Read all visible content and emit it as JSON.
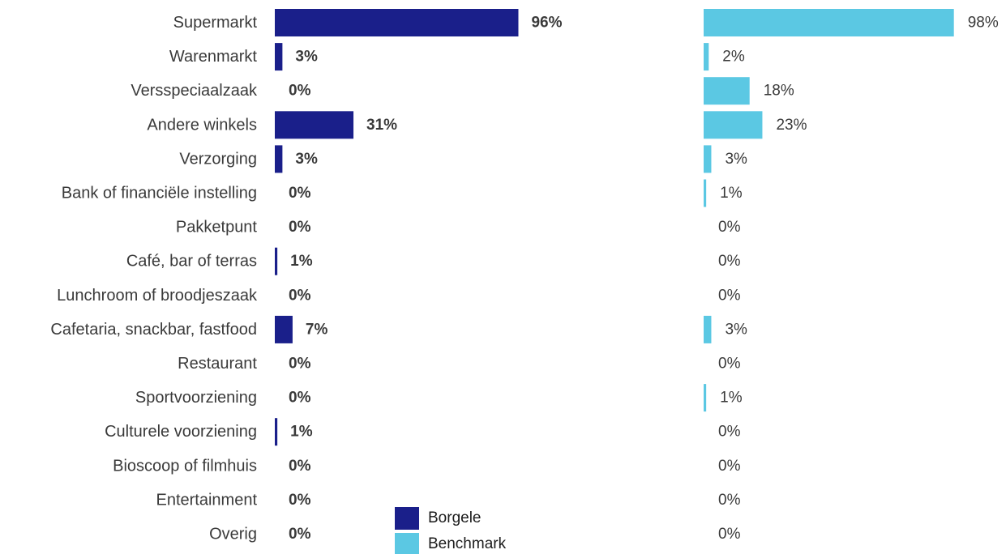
{
  "chart_data": {
    "type": "bar",
    "orientation": "horizontal",
    "categories": [
      "Supermarkt",
      "Warenmarkt",
      "Versspeciaalzaak",
      "Andere winkels",
      "Verzorging",
      "Bank of financiële instelling",
      "Pakketpunt",
      "Café, bar of terras",
      "Lunchroom of broodjeszaak",
      "Cafetaria, snackbar, fastfood",
      "Restaurant",
      "Sportvoorziening",
      "Culturele voorziening",
      "Bioscoop of filmhuis",
      "Entertainment",
      "Overig"
    ],
    "series": [
      {
        "name": "Borgele",
        "color": "#1a1f8a",
        "values": [
          96,
          3,
          0,
          31,
          3,
          0,
          0,
          1,
          0,
          7,
          0,
          0,
          1,
          0,
          0,
          0
        ],
        "labels": [
          "96%",
          "3%",
          "0%",
          "31%",
          "3%",
          "0%",
          "0%",
          "1%",
          "0%",
          "7%",
          "0%",
          "0%",
          "1%",
          "0%",
          "0%",
          "0%"
        ]
      },
      {
        "name": "Benchmark",
        "color": "#5bc8e3",
        "values": [
          98,
          2,
          18,
          23,
          3,
          1,
          0,
          0,
          0,
          3,
          0,
          1,
          0,
          0,
          0,
          0
        ],
        "labels": [
          "98%",
          "2%",
          "18%",
          "23%",
          "3%",
          "1%",
          "0%",
          "0%",
          "0%",
          "3%",
          "0%",
          "1%",
          "0%",
          "0%",
          "0%",
          "0%"
        ]
      }
    ],
    "xlim": [
      0,
      100
    ],
    "unit": "%",
    "grid": false,
    "legend_position": "bottom-center"
  }
}
